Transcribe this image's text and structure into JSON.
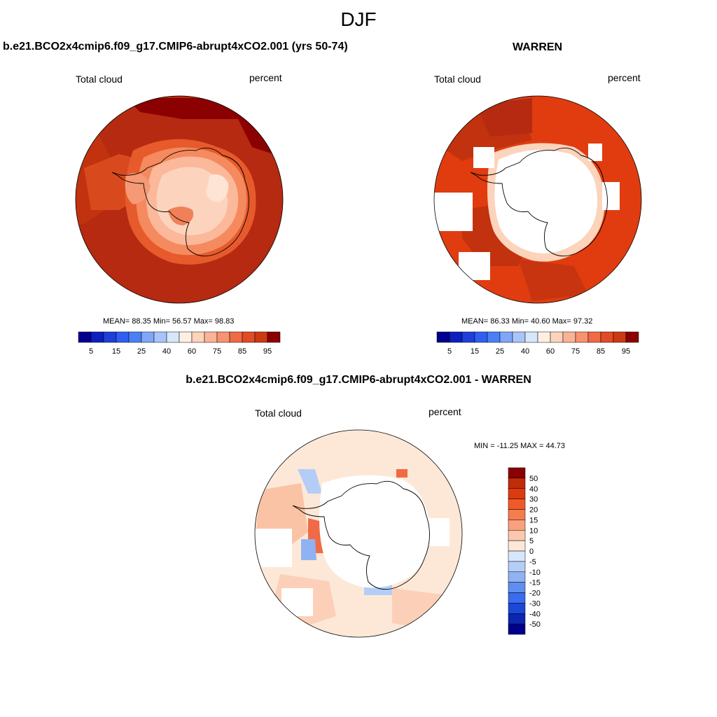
{
  "title": "DJF",
  "panels": [
    {
      "id": "model",
      "title": "b.e21.BCO2x4cmip6.f09_g17.CMIP6-abrupt4xCO2.001 (yrs 50-74)",
      "left_label": "Total cloud",
      "right_label": "percent",
      "stats_text": "MEAN=  88.35  Min=  56.57  Max=  98.83"
    },
    {
      "id": "obs",
      "title": "WARREN",
      "left_label": "Total cloud",
      "right_label": "percent",
      "stats_text": "MEAN=  86.33  Min=  40.60  Max=  97.32"
    },
    {
      "id": "diff",
      "title": "b.e21.BCO2x4cmip6.f09_g17.CMIP6-abrupt4xCO2.001 - WARREN",
      "left_label": "Total cloud",
      "right_label": "percent",
      "stats_text": "MIN = -11.25 MAX =  44.73"
    }
  ],
  "chart_data": [
    {
      "type": "heatmap",
      "projection": "south-polar-stereographic",
      "title": "b.e21.BCO2x4cmip6.f09_g17.CMIP6-abrupt4xCO2.001 (yrs 50-74)",
      "variable": "Total cloud",
      "units": "percent",
      "mean": 88.35,
      "min": 56.57,
      "max": 98.83,
      "colorbar": {
        "orientation": "horizontal",
        "levels": [
          5,
          10,
          15,
          20,
          25,
          30,
          40,
          50,
          60,
          70,
          75,
          80,
          85,
          90,
          95
        ],
        "tick_labels": [
          "5",
          "15",
          "25",
          "40",
          "60",
          "75",
          "85",
          "95"
        ],
        "colors": [
          "#00008b",
          "#0d1fbf",
          "#1f3fd9",
          "#2f5ff0",
          "#4a7ff5",
          "#7fa6f7",
          "#a9c4f8",
          "#d6e6fb",
          "#fdf0e2",
          "#fcd3bb",
          "#fbb396",
          "#f89270",
          "#f06a45",
          "#e14b25",
          "#cc3a12",
          "#8b0000"
        ]
      },
      "field": {
        "inner_ring_percent": 60,
        "coastal_percent": 85,
        "ocean_percent": 95,
        "open_ocean_north_percent": 98
      }
    },
    {
      "type": "heatmap",
      "projection": "south-polar-stereographic",
      "title": "WARREN",
      "variable": "Total cloud",
      "units": "percent",
      "mean": 86.33,
      "min": 40.6,
      "max": 97.32,
      "colorbar": {
        "orientation": "horizontal",
        "levels": [
          5,
          10,
          15,
          20,
          25,
          30,
          40,
          50,
          60,
          70,
          75,
          80,
          85,
          90,
          95
        ],
        "tick_labels": [
          "5",
          "15",
          "25",
          "40",
          "60",
          "75",
          "85",
          "95"
        ],
        "colors": [
          "#00008b",
          "#0d1fbf",
          "#1f3fd9",
          "#2f5ff0",
          "#4a7ff5",
          "#7fa6f7",
          "#a9c4f8",
          "#d6e6fb",
          "#fdf0e2",
          "#fcd3bb",
          "#fbb396",
          "#f89270",
          "#f06a45",
          "#e14b25",
          "#cc3a12",
          "#8b0000"
        ]
      },
      "field": {
        "ocean_percent": 90,
        "missing_over_land": true
      }
    },
    {
      "type": "heatmap",
      "projection": "south-polar-stereographic",
      "title": "b.e21.BCO2x4cmip6.f09_g17.CMIP6-abrupt4xCO2.001 - WARREN",
      "variable": "Total cloud",
      "units": "percent",
      "min": -11.25,
      "max": 44.73,
      "colorbar": {
        "orientation": "vertical",
        "levels": [
          -50,
          -40,
          -30,
          -20,
          -15,
          -10,
          -5,
          0,
          5,
          10,
          15,
          20,
          30,
          40,
          50
        ],
        "tick_labels": [
          "50",
          "40",
          "30",
          "20",
          "15",
          "10",
          "5",
          "0",
          "-5",
          "-10",
          "-15",
          "-20",
          "-30",
          "-40",
          "-50"
        ],
        "colors": [
          "#8b0000",
          "#c02c08",
          "#dc3b10",
          "#f05a28",
          "#f57c4d",
          "#f9a07c",
          "#fcc8ad",
          "#fde8d8",
          "#d8e6fb",
          "#b3cdf7",
          "#8fb2f3",
          "#5f8ef0",
          "#3a6cef",
          "#1c48d6",
          "#0c26b0",
          "#00008b"
        ]
      },
      "field": {
        "ocean_diff_percent": 5,
        "coastal_diff_percent": 15,
        "negative_patch_percent": -10,
        "missing_over_land": true
      }
    }
  ]
}
